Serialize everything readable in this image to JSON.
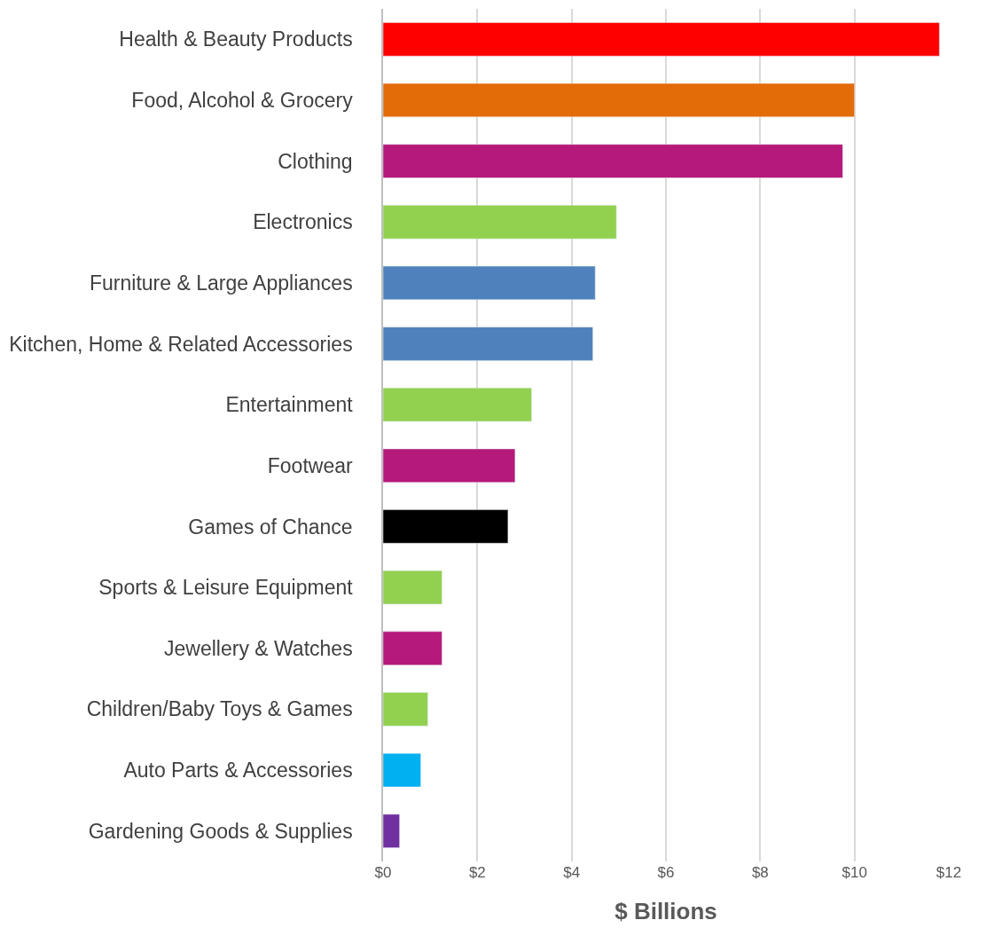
{
  "chart_data": {
    "type": "bar",
    "orientation": "horizontal",
    "xlabel": "$ Billions",
    "categories": [
      "Health & Beauty Products",
      "Food, Alcohol & Grocery",
      "Clothing",
      "Electronics",
      "Furniture & Large Appliances",
      "Kitchen, Home & Related Accessories",
      "Entertainment",
      "Footwear",
      "Games of Chance",
      "Sports & Leisure Equipment",
      "Jewellery & Watches",
      "Children/Baby Toys & Games",
      "Auto Parts & Accessories",
      "Gardening Goods & Supplies"
    ],
    "values": [
      11.8,
      10.0,
      9.75,
      4.95,
      4.5,
      4.45,
      3.15,
      2.8,
      2.65,
      1.25,
      1.25,
      0.95,
      0.8,
      0.35
    ],
    "colors": [
      "#ff0000",
      "#e36c09",
      "#b5197a",
      "#92d050",
      "#4f81bd",
      "#4f81bd",
      "#92d050",
      "#b5197a",
      "#000000",
      "#92d050",
      "#b5197a",
      "#92d050",
      "#00b0f0",
      "#7030a0"
    ],
    "xlim": [
      0,
      12
    ],
    "xticks": [
      {
        "value": 0,
        "label": "$0"
      },
      {
        "value": 2,
        "label": "$2"
      },
      {
        "value": 4,
        "label": "$4"
      },
      {
        "value": 6,
        "label": "$6"
      },
      {
        "value": 8,
        "label": "$8"
      },
      {
        "value": 10,
        "label": "$10"
      },
      {
        "value": 12,
        "label": "$12"
      }
    ],
    "grid": "x"
  }
}
